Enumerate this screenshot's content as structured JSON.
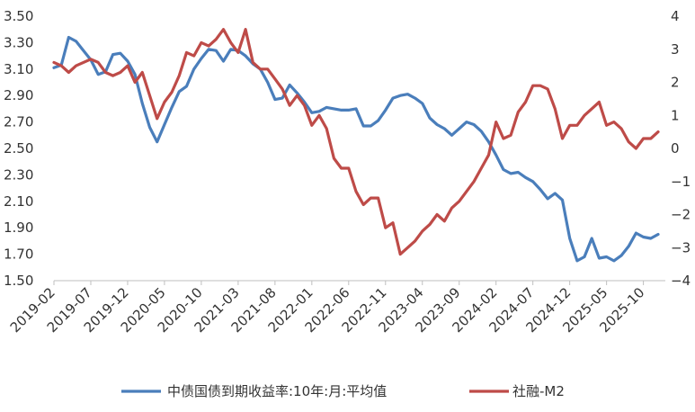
{
  "chart_data": {
    "type": "line",
    "title": "",
    "grid": false,
    "legend_position": "bottom",
    "x_tick_labels": [
      "2019-02",
      "2019-07",
      "2019-12",
      "2020-05",
      "2020-10",
      "2021-03",
      "2021-08",
      "2022-01",
      "2022-06",
      "2022-11",
      "2023-04",
      "2023-09",
      "2024-02",
      "2024-07",
      "2024-12",
      "2025-05",
      "2025-10"
    ],
    "y_left": {
      "range": [
        1.5,
        3.5
      ],
      "tick_labels": [
        "3.50",
        "3.30",
        "3.10",
        "2.90",
        "2.70",
        "2.50",
        "2.30",
        "2.10",
        "1.90",
        "1.70",
        "1.50"
      ]
    },
    "y_right": {
      "range": [
        -4,
        4
      ],
      "tick_labels": [
        "4",
        "3",
        "2",
        "1",
        "0",
        "-1",
        "-2",
        "-3",
        "-4"
      ]
    },
    "series": [
      {
        "name": "中债国债到期收益率:10年:月:平均值",
        "axis": "left",
        "color": "#4A7EBB",
        "values": [
          [
            "2019-02",
            3.11
          ],
          [
            "2019-03",
            3.13
          ],
          [
            "2019-04",
            3.34
          ],
          [
            "2019-05",
            3.31
          ],
          [
            "2019-06",
            3.24
          ],
          [
            "2019-07",
            3.17
          ],
          [
            "2019-08",
            3.06
          ],
          [
            "2019-09",
            3.08
          ],
          [
            "2019-10",
            3.21
          ],
          [
            "2019-11",
            3.22
          ],
          [
            "2019-12",
            3.16
          ],
          [
            "2020-01",
            3.06
          ],
          [
            "2020-02",
            2.84
          ],
          [
            "2020-03",
            2.66
          ],
          [
            "2020-04",
            2.55
          ],
          [
            "2020-05",
            2.68
          ],
          [
            "2020-06",
            2.81
          ],
          [
            "2020-07",
            2.93
          ],
          [
            "2020-08",
            2.97
          ],
          [
            "2020-09",
            3.1
          ],
          [
            "2020-10",
            3.18
          ],
          [
            "2020-11",
            3.25
          ],
          [
            "2020-12",
            3.24
          ],
          [
            "2021-01",
            3.16
          ],
          [
            "2021-02",
            3.25
          ],
          [
            "2021-03",
            3.24
          ],
          [
            "2021-04",
            3.2
          ],
          [
            "2021-05",
            3.14
          ],
          [
            "2021-06",
            3.1
          ],
          [
            "2021-07",
            3.0
          ],
          [
            "2021-08",
            2.87
          ],
          [
            "2021-09",
            2.88
          ],
          [
            "2021-10",
            2.98
          ],
          [
            "2021-11",
            2.92
          ],
          [
            "2021-12",
            2.85
          ],
          [
            "2022-01",
            2.77
          ],
          [
            "2022-02",
            2.78
          ],
          [
            "2022-03",
            2.81
          ],
          [
            "2022-04",
            2.8
          ],
          [
            "2022-05",
            2.79
          ],
          [
            "2022-06",
            2.79
          ],
          [
            "2022-07",
            2.8
          ],
          [
            "2022-08",
            2.67
          ],
          [
            "2022-09",
            2.67
          ],
          [
            "2022-10",
            2.71
          ],
          [
            "2022-11",
            2.79
          ],
          [
            "2022-12",
            2.88
          ],
          [
            "2023-01",
            2.9
          ],
          [
            "2023-02",
            2.91
          ],
          [
            "2023-03",
            2.88
          ],
          [
            "2023-04",
            2.84
          ],
          [
            "2023-05",
            2.73
          ],
          [
            "2023-06",
            2.68
          ],
          [
            "2023-07",
            2.65
          ],
          [
            "2023-08",
            2.6
          ],
          [
            "2023-09",
            2.65
          ],
          [
            "2023-10",
            2.7
          ],
          [
            "2023-11",
            2.68
          ],
          [
            "2023-12",
            2.63
          ],
          [
            "2024-01",
            2.55
          ],
          [
            "2024-02",
            2.45
          ],
          [
            "2024-03",
            2.34
          ],
          [
            "2024-04",
            2.31
          ],
          [
            "2024-05",
            2.32
          ],
          [
            "2024-06",
            2.28
          ],
          [
            "2024-07",
            2.25
          ],
          [
            "2024-08",
            2.19
          ],
          [
            "2024-09",
            2.12
          ],
          [
            "2024-10",
            2.16
          ],
          [
            "2024-11",
            2.11
          ],
          [
            "2024-12",
            1.82
          ],
          [
            "2025-01",
            1.65
          ],
          [
            "2025-02",
            1.68
          ],
          [
            "2025-03",
            1.82
          ],
          [
            "2025-04",
            1.67
          ],
          [
            "2025-05",
            1.68
          ],
          [
            "2025-06",
            1.65
          ],
          [
            "2025-07",
            1.69
          ],
          [
            "2025-08",
            1.76
          ],
          [
            "2025-09",
            1.86
          ],
          [
            "2025-10",
            1.83
          ],
          [
            "2025-11",
            1.82
          ],
          [
            "2025-12",
            1.85
          ]
        ]
      },
      {
        "name": "社融-M2",
        "axis": "right",
        "color": "#BE4B48",
        "values": [
          [
            "2019-02",
            2.6
          ],
          [
            "2019-03",
            2.5
          ],
          [
            "2019-04",
            2.3
          ],
          [
            "2019-05",
            2.5
          ],
          [
            "2019-06",
            2.6
          ],
          [
            "2019-07",
            2.7
          ],
          [
            "2019-08",
            2.6
          ],
          [
            "2019-09",
            2.3
          ],
          [
            "2019-10",
            2.2
          ],
          [
            "2019-11",
            2.3
          ],
          [
            "2019-12",
            2.5
          ],
          [
            "2020-01",
            2.0
          ],
          [
            "2020-02",
            2.3
          ],
          [
            "2020-03",
            1.6
          ],
          [
            "2020-04",
            0.9
          ],
          [
            "2020-05",
            1.4
          ],
          [
            "2020-06",
            1.7
          ],
          [
            "2020-07",
            2.2
          ],
          [
            "2020-08",
            2.9
          ],
          [
            "2020-09",
            2.8
          ],
          [
            "2020-10",
            3.2
          ],
          [
            "2020-11",
            3.1
          ],
          [
            "2020-12",
            3.3
          ],
          [
            "2021-01",
            3.6
          ],
          [
            "2021-02",
            3.2
          ],
          [
            "2021-03",
            2.9
          ],
          [
            "2021-04",
            3.6
          ],
          [
            "2021-05",
            2.6
          ],
          [
            "2021-06",
            2.4
          ],
          [
            "2021-07",
            2.4
          ],
          [
            "2021-08",
            2.1
          ],
          [
            "2021-09",
            1.8
          ],
          [
            "2021-10",
            1.3
          ],
          [
            "2021-11",
            1.6
          ],
          [
            "2021-12",
            1.3
          ],
          [
            "2022-01",
            0.7
          ],
          [
            "2022-02",
            1.0
          ],
          [
            "2022-03",
            0.6
          ],
          [
            "2022-04",
            -0.3
          ],
          [
            "2022-05",
            -0.6
          ],
          [
            "2022-06",
            -0.6
          ],
          [
            "2022-07",
            -1.3
          ],
          [
            "2022-08",
            -1.7
          ],
          [
            "2022-09",
            -1.5
          ],
          [
            "2022-10",
            -1.5
          ],
          [
            "2022-11",
            -2.4
          ],
          [
            "2022-12",
            -2.25
          ],
          [
            "2023-01",
            -3.2
          ],
          [
            "2023-02",
            -3.0
          ],
          [
            "2023-03",
            -2.8
          ],
          [
            "2023-04",
            -2.5
          ],
          [
            "2023-05",
            -2.3
          ],
          [
            "2023-06",
            -2.0
          ],
          [
            "2023-07",
            -2.2
          ],
          [
            "2023-08",
            -1.8
          ],
          [
            "2023-09",
            -1.6
          ],
          [
            "2023-10",
            -1.3
          ],
          [
            "2023-11",
            -1.0
          ],
          [
            "2023-12",
            -0.6
          ],
          [
            "2024-01",
            -0.2
          ],
          [
            "2024-02",
            0.8
          ],
          [
            "2024-03",
            0.3
          ],
          [
            "2024-04",
            0.4
          ],
          [
            "2024-05",
            1.1
          ],
          [
            "2024-06",
            1.4
          ],
          [
            "2024-07",
            1.9
          ],
          [
            "2024-08",
            1.9
          ],
          [
            "2024-09",
            1.8
          ],
          [
            "2024-10",
            1.2
          ],
          [
            "2024-11",
            0.3
          ],
          [
            "2024-12",
            0.7
          ],
          [
            "2025-01",
            0.7
          ],
          [
            "2025-02",
            1.0
          ],
          [
            "2025-03",
            1.2
          ],
          [
            "2025-04",
            1.4
          ],
          [
            "2025-05",
            0.7
          ],
          [
            "2025-06",
            0.8
          ],
          [
            "2025-07",
            0.6
          ],
          [
            "2025-08",
            0.2
          ],
          [
            "2025-09",
            0.0
          ],
          [
            "2025-10",
            0.3
          ],
          [
            "2025-11",
            0.3
          ],
          [
            "2025-12",
            0.5
          ]
        ]
      }
    ]
  }
}
